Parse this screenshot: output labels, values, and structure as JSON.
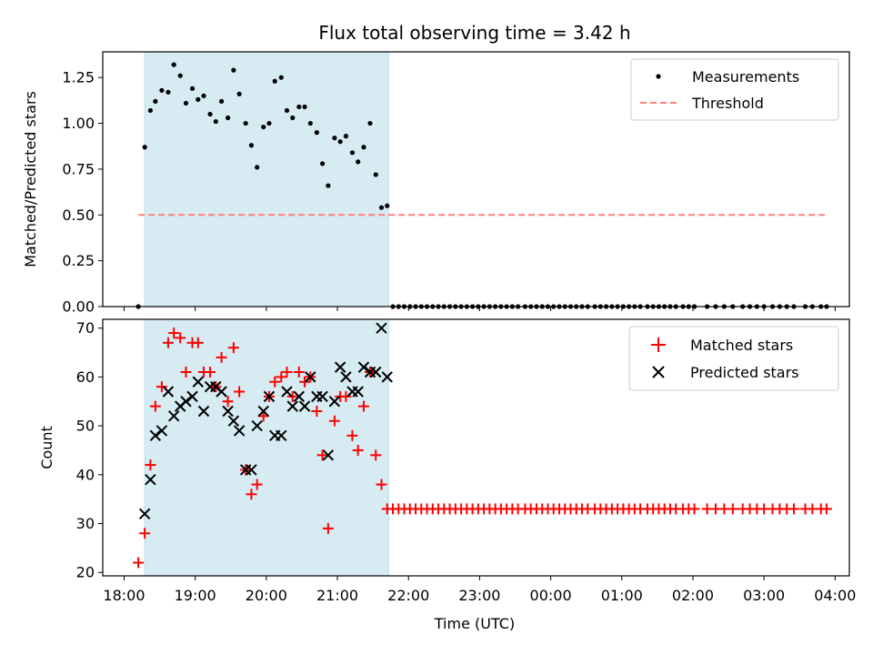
{
  "chart_data": [
    {
      "type": "scatter",
      "title": "Flux total observing time = 3.42 h",
      "xlabel": "",
      "ylabel": "Matched/Predicted stars",
      "xlim": [
        -0.3,
        10.2
      ],
      "ylim": [
        0.0,
        1.39
      ],
      "y_ticks": [
        0.0,
        0.25,
        0.5,
        0.75,
        1.0,
        1.25
      ],
      "y_tick_labels": [
        "0.00",
        "0.25",
        "0.50",
        "0.75",
        "1.00",
        "1.25"
      ],
      "shaded_span": [
        0.29,
        3.72
      ],
      "shade_color": "#add8e6",
      "legend_position": "upper right",
      "series": [
        {
          "name": "Measurements",
          "marker": "dot",
          "color": "#000000",
          "x": [
            0.2,
            0.29,
            0.37,
            0.44,
            0.53,
            0.62,
            0.7,
            0.79,
            0.87,
            0.96,
            1.04,
            1.12,
            1.21,
            1.29,
            1.37,
            1.46,
            1.54,
            1.62,
            1.71,
            1.79,
            1.87,
            1.96,
            2.04,
            2.12,
            2.21,
            2.29,
            2.37,
            2.46,
            2.54,
            2.62,
            2.71,
            2.79,
            2.87,
            2.96,
            3.04,
            3.12,
            3.21,
            3.29,
            3.37,
            3.46,
            3.54,
            3.62,
            3.7,
            3.78,
            3.86,
            3.94,
            4.02,
            4.1,
            4.18,
            4.26,
            4.34,
            4.42,
            4.5,
            4.58,
            4.66,
            4.74,
            4.82,
            4.9,
            4.98,
            5.06,
            5.14,
            5.22,
            5.3,
            5.38,
            5.46,
            5.54,
            5.64,
            5.72,
            5.8,
            5.88,
            5.96,
            6.04,
            6.12,
            6.2,
            6.28,
            6.36,
            6.44,
            6.52,
            6.62,
            6.7,
            6.78,
            6.86,
            6.94,
            7.02,
            7.1,
            7.18,
            7.26,
            7.36,
            7.44,
            7.52,
            7.6,
            7.68,
            7.76,
            7.86,
            7.94,
            8.02,
            8.2,
            8.32,
            8.44,
            8.56,
            8.7,
            8.8,
            8.9,
            9.0,
            9.12,
            9.22,
            9.32,
            9.42,
            9.58,
            9.68,
            9.8,
            9.88
          ],
          "y": [
            0.0,
            0.87,
            1.07,
            1.12,
            1.18,
            1.17,
            1.32,
            1.26,
            1.11,
            1.19,
            1.13,
            1.15,
            1.05,
            1.01,
            1.12,
            1.03,
            1.29,
            1.16,
            1.0,
            0.88,
            0.76,
            0.98,
            1.0,
            1.23,
            1.25,
            1.07,
            1.03,
            1.09,
            1.09,
            1.0,
            0.95,
            0.78,
            0.66,
            0.92,
            0.9,
            0.93,
            0.84,
            0.79,
            0.87,
            1.0,
            0.72,
            0.54,
            0.55,
            0.0,
            0.0,
            0.0,
            0.0,
            0.0,
            0.0,
            0.0,
            0.0,
            0.0,
            0.0,
            0.0,
            0.0,
            0.0,
            0.0,
            0.0,
            0.0,
            0.0,
            0.0,
            0.0,
            0.0,
            0.0,
            0.0,
            0.0,
            0.0,
            0.0,
            0.0,
            0.0,
            0.0,
            0.0,
            0.0,
            0.0,
            0.0,
            0.0,
            0.0,
            0.0,
            0.0,
            0.0,
            0.0,
            0.0,
            0.0,
            0.0,
            0.0,
            0.0,
            0.0,
            0.0,
            0.0,
            0.0,
            0.0,
            0.0,
            0.0,
            0.0,
            0.0,
            0.0,
            0.0,
            0.0,
            0.0,
            0.0,
            0.0,
            0.0,
            0.0,
            0.0,
            0.0,
            0.0,
            0.0,
            0.0,
            0.0,
            0.0,
            0.0,
            0.0
          ]
        },
        {
          "name": "Threshold",
          "marker": "dashed-line",
          "color": "#ff7f7f",
          "x": [
            0.2,
            9.88
          ],
          "y": [
            0.5,
            0.5
          ]
        }
      ]
    },
    {
      "type": "scatter",
      "title": "",
      "xlabel": "Time (UTC)",
      "ylabel": "Count",
      "xlim": [
        -0.3,
        10.2
      ],
      "ylim": [
        19.3,
        71.8
      ],
      "y_ticks": [
        20,
        30,
        40,
        50,
        60,
        70
      ],
      "y_tick_labels": [
        "20",
        "30",
        "40",
        "50",
        "60",
        "70"
      ],
      "x_ticks": [
        0,
        1,
        2,
        3,
        4,
        5,
        6,
        7,
        8,
        9,
        10
      ],
      "x_tick_labels": [
        "18:00",
        "19:00",
        "20:00",
        "21:00",
        "22:00",
        "23:00",
        "00:00",
        "01:00",
        "02:00",
        "03:00",
        "04:00"
      ],
      "shaded_span": [
        0.29,
        3.72
      ],
      "shade_color": "#add8e6",
      "legend_position": "upper right",
      "series": [
        {
          "name": "Matched stars",
          "marker": "plus",
          "color": "#ff0000",
          "x": [
            0.2,
            0.29,
            0.37,
            0.44,
            0.53,
            0.62,
            0.7,
            0.79,
            0.87,
            0.96,
            1.04,
            1.12,
            1.21,
            1.29,
            1.37,
            1.46,
            1.54,
            1.62,
            1.71,
            1.79,
            1.87,
            1.96,
            2.04,
            2.12,
            2.21,
            2.29,
            2.37,
            2.46,
            2.54,
            2.62,
            2.71,
            2.79,
            2.87,
            2.96,
            3.04,
            3.12,
            3.21,
            3.29,
            3.37,
            3.46,
            3.54,
            3.62,
            3.7,
            3.78,
            3.86,
            3.94,
            4.02,
            4.1,
            4.18,
            4.26,
            4.34,
            4.42,
            4.5,
            4.58,
            4.66,
            4.74,
            4.82,
            4.9,
            4.98,
            5.06,
            5.14,
            5.22,
            5.3,
            5.38,
            5.46,
            5.54,
            5.64,
            5.72,
            5.8,
            5.88,
            5.96,
            6.04,
            6.12,
            6.2,
            6.28,
            6.36,
            6.44,
            6.52,
            6.62,
            6.7,
            6.78,
            6.86,
            6.94,
            7.02,
            7.1,
            7.18,
            7.26,
            7.36,
            7.44,
            7.52,
            7.6,
            7.68,
            7.76,
            7.86,
            7.94,
            8.02,
            8.2,
            8.32,
            8.44,
            8.56,
            8.7,
            8.8,
            8.9,
            9.0,
            9.12,
            9.22,
            9.32,
            9.42,
            9.58,
            9.68,
            9.8,
            9.88
          ],
          "y": [
            22,
            28,
            42,
            54,
            58,
            67,
            69,
            68,
            61,
            67,
            67,
            61,
            61,
            58,
            64,
            55,
            66,
            57,
            41,
            36,
            38,
            52,
            56,
            59,
            60,
            61,
            56,
            61,
            59,
            60,
            53,
            44,
            29,
            51,
            56,
            56,
            48,
            45,
            54,
            61,
            44,
            38,
            33,
            33,
            33,
            33,
            33,
            33,
            33,
            33,
            33,
            33,
            33,
            33,
            33,
            33,
            33,
            33,
            33,
            33,
            33,
            33,
            33,
            33,
            33,
            33,
            33,
            33,
            33,
            33,
            33,
            33,
            33,
            33,
            33,
            33,
            33,
            33,
            33,
            33,
            33,
            33,
            33,
            33,
            33,
            33,
            33,
            33,
            33,
            33,
            33,
            33,
            33,
            33,
            33,
            33,
            33,
            33,
            33,
            33,
            33,
            33,
            33,
            33,
            33,
            33,
            33,
            33,
            33,
            33,
            33,
            33
          ]
        },
        {
          "name": "Predicted stars",
          "marker": "x",
          "color": "#000000",
          "x": [
            0.29,
            0.37,
            0.44,
            0.53,
            0.62,
            0.7,
            0.79,
            0.87,
            0.96,
            1.04,
            1.12,
            1.21,
            1.29,
            1.37,
            1.46,
            1.54,
            1.62,
            1.71,
            1.79,
            1.87,
            1.96,
            2.04,
            2.12,
            2.21,
            2.29,
            2.37,
            2.46,
            2.54,
            2.62,
            2.71,
            2.79,
            2.87,
            2.96,
            3.04,
            3.12,
            3.21,
            3.29,
            3.37,
            3.46,
            3.54,
            3.62,
            3.7
          ],
          "y": [
            32,
            39,
            48,
            49,
            57,
            52,
            54,
            55,
            56,
            59,
            53,
            58,
            58,
            57,
            53,
            51,
            49,
            41,
            41,
            50,
            53,
            56,
            48,
            48,
            57,
            54,
            56,
            54,
            60,
            56,
            56,
            44,
            55,
            62,
            60,
            57,
            57,
            62,
            61,
            61,
            70,
            60
          ]
        }
      ]
    }
  ]
}
